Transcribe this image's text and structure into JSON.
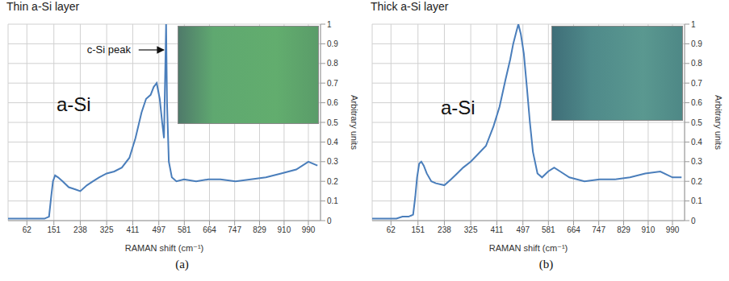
{
  "chart_data": [
    {
      "type": "line",
      "title": "Thin a-Si layer",
      "caption": "(a)",
      "x_label": "RAMAN shift (cm⁻¹)",
      "y_label": "Arbitrary units",
      "annotations": {
        "peak": "c-Si peak",
        "band": "a-Si"
      },
      "x": [
        0,
        20,
        40,
        60,
        80,
        100,
        120,
        135,
        142,
        148,
        155,
        165,
        180,
        200,
        220,
        238,
        260,
        280,
        300,
        325,
        350,
        375,
        400,
        420,
        440,
        455,
        470,
        480,
        490,
        500,
        508,
        514,
        518,
        521,
        524,
        530,
        540,
        555,
        580,
        620,
        660,
        700,
        750,
        800,
        850,
        900,
        950,
        990,
        1020
      ],
      "values": [
        0.01,
        0.01,
        0.01,
        0.01,
        0.01,
        0.01,
        0.01,
        0.02,
        0.12,
        0.2,
        0.23,
        0.22,
        0.2,
        0.17,
        0.16,
        0.15,
        0.18,
        0.2,
        0.22,
        0.24,
        0.25,
        0.27,
        0.32,
        0.42,
        0.55,
        0.62,
        0.64,
        0.68,
        0.7,
        0.62,
        0.5,
        0.42,
        0.75,
        1.0,
        0.6,
        0.3,
        0.22,
        0.2,
        0.21,
        0.2,
        0.21,
        0.21,
        0.2,
        0.21,
        0.22,
        0.24,
        0.26,
        0.3,
        0.28
      ],
      "color": "#4a7ebb",
      "xlim": [
        0,
        1030
      ],
      "xticks": [
        62,
        151,
        238,
        325,
        411,
        497,
        581,
        664,
        747,
        829,
        910,
        990
      ],
      "ylim": [
        0,
        1
      ],
      "yticks": [
        0,
        0.1,
        0.2,
        0.3,
        0.4,
        0.5,
        0.6,
        0.7,
        0.8,
        0.9,
        1
      ],
      "grid": true
    },
    {
      "type": "line",
      "title": "Thick a-Si layer",
      "caption": "(b)",
      "x_label": "RAMAN shift (cm⁻¹)",
      "y_label": "Arbitrary units",
      "annotations": {
        "band": "a-Si"
      },
      "x": [
        0,
        20,
        40,
        60,
        80,
        100,
        120,
        135,
        142,
        148,
        155,
        162,
        170,
        180,
        195,
        210,
        238,
        260,
        280,
        300,
        325,
        350,
        375,
        400,
        420,
        440,
        455,
        465,
        475,
        482,
        490,
        500,
        510,
        520,
        530,
        545,
        560,
        580,
        600,
        620,
        650,
        700,
        750,
        800,
        850,
        900,
        950,
        990,
        1020
      ],
      "values": [
        0.01,
        0.01,
        0.01,
        0.01,
        0.01,
        0.02,
        0.02,
        0.03,
        0.12,
        0.22,
        0.29,
        0.3,
        0.28,
        0.24,
        0.2,
        0.19,
        0.18,
        0.21,
        0.24,
        0.27,
        0.3,
        0.34,
        0.38,
        0.48,
        0.58,
        0.72,
        0.82,
        0.9,
        0.96,
        1.0,
        0.95,
        0.85,
        0.68,
        0.5,
        0.35,
        0.24,
        0.22,
        0.25,
        0.27,
        0.25,
        0.22,
        0.2,
        0.21,
        0.21,
        0.22,
        0.24,
        0.25,
        0.22,
        0.22
      ],
      "color": "#4a7ebb",
      "xlim": [
        0,
        1030
      ],
      "xticks": [
        62,
        151,
        238,
        325,
        411,
        497,
        581,
        664,
        747,
        829,
        910,
        990
      ],
      "ylim": [
        0,
        1
      ],
      "yticks": [
        0,
        0.1,
        0.2,
        0.3,
        0.4,
        0.5,
        0.6,
        0.7,
        0.8,
        0.9,
        1
      ],
      "grid": true
    }
  ]
}
